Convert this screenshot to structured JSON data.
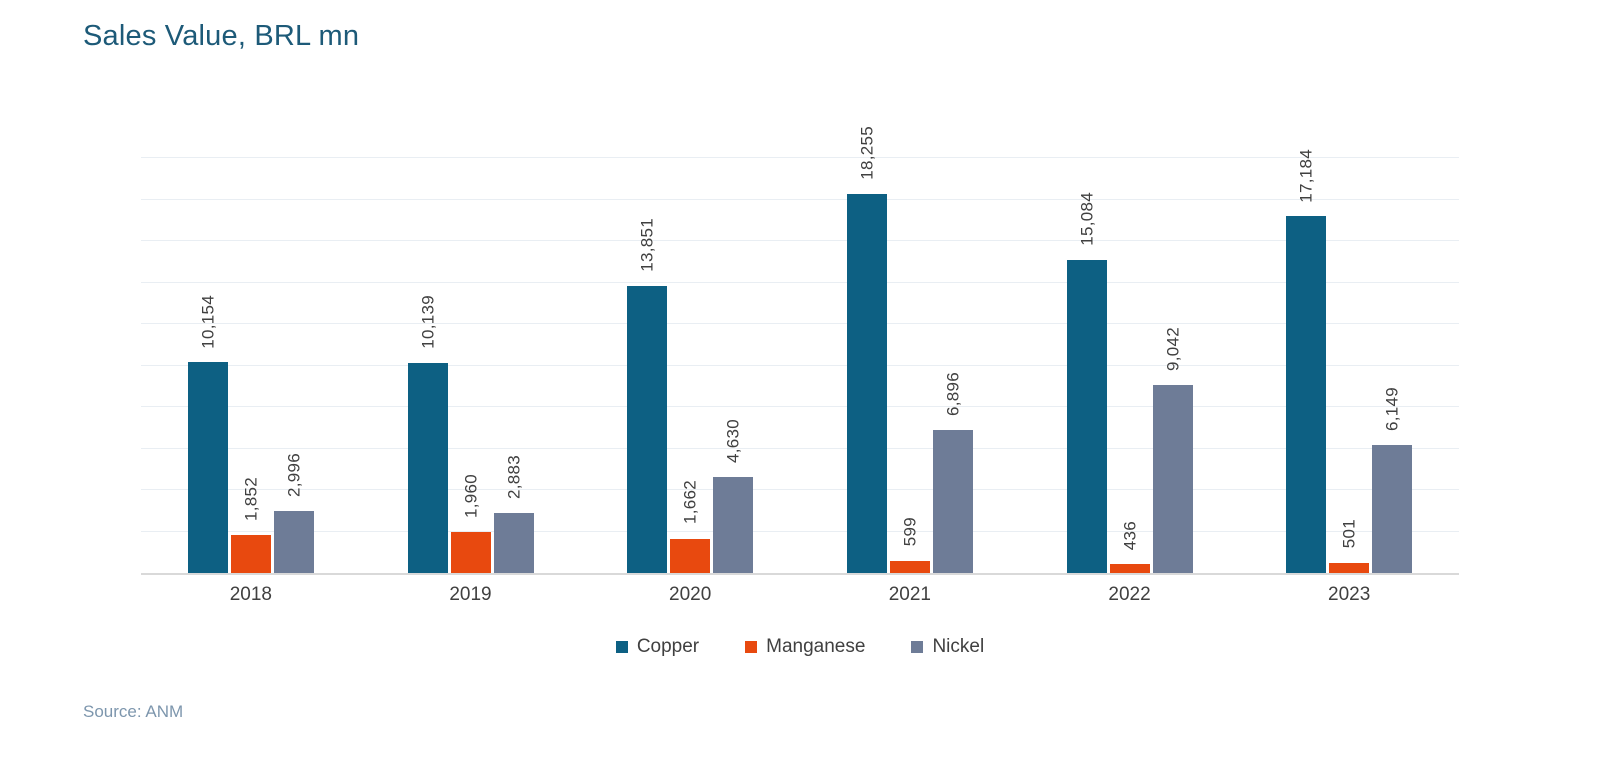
{
  "page": {
    "title": "Sales Value, BRL mn",
    "source": "Source: ANM"
  },
  "chart_data": {
    "type": "bar",
    "title": "Sales Value, BRL mn",
    "categories": [
      "2018",
      "2019",
      "2020",
      "2021",
      "2022",
      "2023"
    ],
    "series": [
      {
        "name": "Copper",
        "color": "#0d6083",
        "values": [
          10154,
          10139,
          13851,
          18255,
          15084,
          17184
        ]
      },
      {
        "name": "Manganese",
        "color": "#e8490f",
        "values": [
          1852,
          1960,
          1662,
          599,
          436,
          501
        ]
      },
      {
        "name": "Nickel",
        "color": "#6e7c97",
        "values": [
          2996,
          2883,
          4630,
          6896,
          9042,
          6149
        ]
      }
    ],
    "xlabel": "",
    "ylabel": "",
    "ylim": [
      0,
      20000
    ],
    "gridline_interval": 2000,
    "grid": "horizontal",
    "legend_position": "bottom",
    "value_labels": "rotated-vertical",
    "grid_color": "#e9eef3",
    "axis_color": "#d9d9d9",
    "label_color": "#404040",
    "title_color": "#1d5a78",
    "source_color": "#7d96ad",
    "background_color": "#ffffff"
  }
}
